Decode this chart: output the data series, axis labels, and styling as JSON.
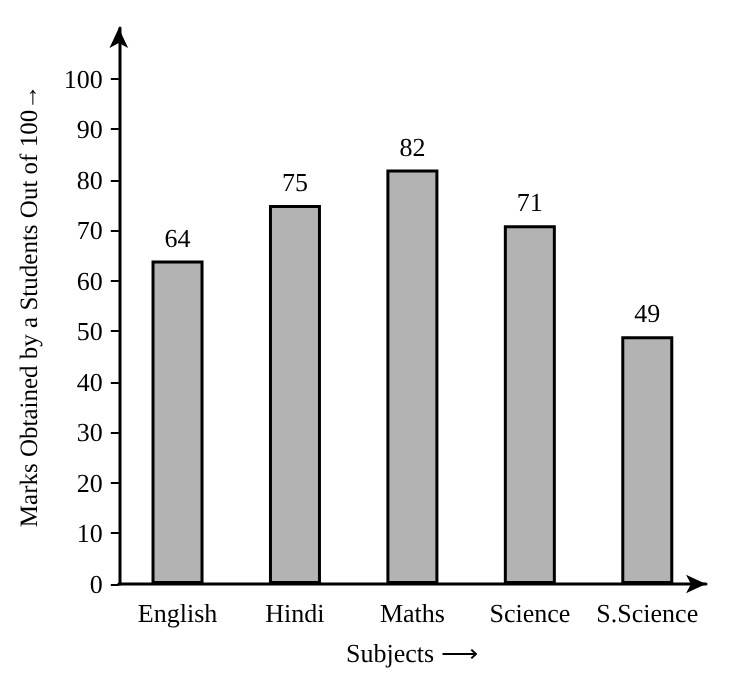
{
  "chart_data": {
    "type": "bar",
    "xlabel": "Subjects ⟶",
    "ylabel": "Marks Obtained by a Students Out of 100→",
    "categories": [
      "English",
      "Hindi",
      "Maths",
      "Science",
      "S.Science"
    ],
    "values": [
      64,
      75,
      82,
      71,
      49
    ],
    "color": "#b3b3b3",
    "ylim": [
      0,
      110
    ],
    "yticks": [
      0,
      10,
      20,
      30,
      40,
      50,
      60,
      70,
      80,
      90,
      100
    ],
    "grid": false,
    "data_labels": true
  }
}
